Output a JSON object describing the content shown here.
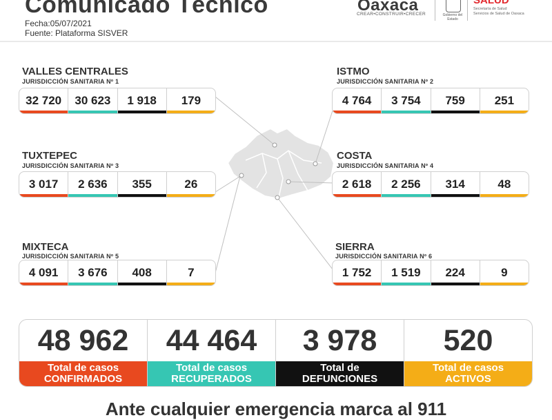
{
  "header": {
    "title": "Comunicado Técnico",
    "fecha": "Fecha:05/07/2021",
    "fuente": "Fuente: Plataforma SISVER"
  },
  "logos": {
    "oaxaca_wordmark": "Oaxaca",
    "oaxaca_tagline": "CREAR•CONSTRUIR•CRECER",
    "gobierno_caption": "Gobierno del Estado",
    "salud_wordmark": "SALUD",
    "salud_line1": "Secretaría de Salud",
    "salud_line2": "Servicios de Salud de Oaxaca"
  },
  "colors": {
    "confirmados": "#e8491f",
    "recuperados": "#36c6b3",
    "defunciones": "#111111",
    "activos": "#f4ad17"
  },
  "regions": [
    {
      "name": "VALLES CENTRALES",
      "sub": "JURISDICCIÓN SANITARIA Nº 1",
      "values": [
        "32 720",
        "30 623",
        "1 918",
        "179"
      ]
    },
    {
      "name": "ISTMO",
      "sub": "JURISDICCIÓN SANITARIA Nº 2",
      "values": [
        "4 764",
        "3 754",
        "759",
        "251"
      ]
    },
    {
      "name": "TUXTEPEC",
      "sub": "JURISDICCIÓN SANITARIA Nº 3",
      "values": [
        "3 017",
        "2 636",
        "355",
        "26"
      ]
    },
    {
      "name": "COSTA",
      "sub": "JURISDICCIÓN SANITARIA Nº 4",
      "values": [
        "2 618",
        "2 256",
        "314",
        "48"
      ]
    },
    {
      "name": "MIXTECA",
      "sub": "JURISDICCIÓN SANITARIA Nº 5",
      "values": [
        "4 091",
        "3 676",
        "408",
        "7"
      ]
    },
    {
      "name": "SIERRA",
      "sub": "JURISDICCIÓN SANITARIA Nº 6",
      "values": [
        "1 752",
        "1 519",
        "224",
        "9"
      ]
    }
  ],
  "totals": [
    {
      "value": "48 962",
      "label1": "Total de casos",
      "label2": "CONFIRMADOS"
    },
    {
      "value": "44 464",
      "label1": "Total de casos",
      "label2": "RECUPERADOS"
    },
    {
      "value": "3 978",
      "label1": "Total de",
      "label2": "DEFUNCIONES"
    },
    {
      "value": "520",
      "label1": "Total de casos",
      "label2": "ACTIVOS"
    }
  ],
  "footer": "Ante cualquier emergencia marca al 911"
}
